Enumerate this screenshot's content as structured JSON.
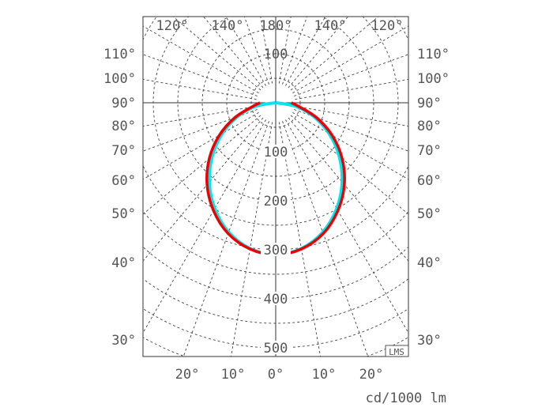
{
  "chart_data": {
    "type": "polar",
    "unit_label": "cd/1000 lm",
    "watermark": "LMS",
    "radial_ticks": [
      100,
      200,
      300,
      400,
      500
    ],
    "top_radial_label": "100",
    "radial_range": [
      0,
      600
    ],
    "top_angle_labels": [
      "120°",
      "140°",
      "180°",
      "140°",
      "120°"
    ],
    "bottom_angle_labels": [
      "20°",
      "10°",
      "0°",
      "10°",
      "20°"
    ],
    "side_angle_labels": [
      "110°",
      "100°",
      "90°",
      "80°",
      "70°",
      "60°",
      "50°",
      "40°",
      "30°"
    ],
    "grid": true,
    "gamma": [
      0,
      10,
      20,
      30,
      40,
      50,
      60,
      70,
      80,
      90
    ],
    "series": [
      {
        "color": "#00e5ee",
        "values": [
          310,
          302,
          281,
          249,
          211,
          169,
          126,
          83,
          41,
          0
        ]
      },
      {
        "color": "#ee0000",
        "values": [
          310,
          303,
          284,
          254,
          218,
          177,
          133,
          89,
          50,
          32
        ]
      }
    ]
  }
}
